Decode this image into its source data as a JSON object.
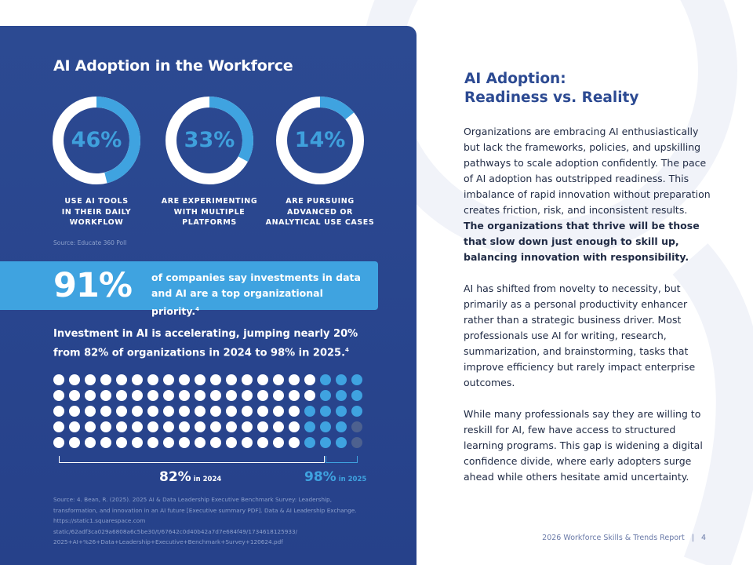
{
  "left": {
    "title": "AI Adoption in the Workforce",
    "donuts": [
      {
        "value": "46%",
        "fraction": 0.46,
        "caption": "USE AI TOOLS\nIN THEIR DAILY\nWORKFLOW"
      },
      {
        "value": "33%",
        "fraction": 0.33,
        "caption": "ARE EXPERIMENTING\nWITH MULTIPLE\nPLATFORMS"
      },
      {
        "value": "14%",
        "fraction": 0.14,
        "caption": "ARE PURSUING\nADVANCED OR\nANALYTICAL USE CASES"
      }
    ],
    "source_poll": "Source: Educate 360 Poll",
    "banner": {
      "big": "91%",
      "text": "of companies say investments in data and AI are a top organizational priority.",
      "footnote": "4"
    },
    "investment": {
      "text": "Investment in AI is accelerating, jumping nearly 20% from 82% of organizations in 2024 to 98% in 2025.",
      "footnote": "4"
    },
    "dots": {
      "total": 100,
      "white_count": 82,
      "blue_count": 16,
      "grey_count": 2
    },
    "label_2024": {
      "value": "82%",
      "sub": "in 2024"
    },
    "label_2025": {
      "value": "98%",
      "sub": "in 2025"
    },
    "source_long": "Source: 4. Bean, R. (2025). 2025 AI & Data Leadership Executive Benchmark Survey: Leadership, transformation, and innovation in an AI future [Executive summary PDF]. Data & AI Leadership Exchange. https://static1.squarespace.com static/62adf3ca029a6808a6c5be30/t/67642c0d40b42a7d7e684f49/1734618125933/ 2025+AI+%26+Data+Leadership+Executive+Benchmark+Survey+120624.pdf"
  },
  "right": {
    "title_line1": "AI Adoption:",
    "title_line2": "Readiness vs. Reality",
    "p1_plain": "Organizations are embracing AI enthusiastically but lack the frameworks, policies, and upskilling pathways to scale adoption confidently. The pace of AI adoption has outstripped readiness. This imbalance of rapid innovation without preparation creates friction, risk, and inconsistent results.",
    "p1_bold": "The organizations that thrive will be those that slow down just enough to skill up, balancing innovation with responsibility.",
    "p2": "AI has shifted from novelty to necessity, but primarily as a personal productivity enhancer rather than a strategic business driver. Most professionals use AI for writing, research, summarization, and brainstorming, tasks that improve efficiency but rarely impact enterprise outcomes.",
    "p3": "While many professionals say they are willing to reskill for AI, few have access to structured learning programs. This gap is widening a digital confidence divide, where early adopters surge ahead while others hesitate amid uncertainty."
  },
  "footer": {
    "report": "2026 Workforce Skills & Trends Report",
    "separator": "|",
    "page": "4"
  },
  "colors": {
    "navy": "#2c4a92",
    "accent": "#3fa3e0",
    "grey_dot": "#4d618f",
    "ring_bg": "#ffffff"
  }
}
